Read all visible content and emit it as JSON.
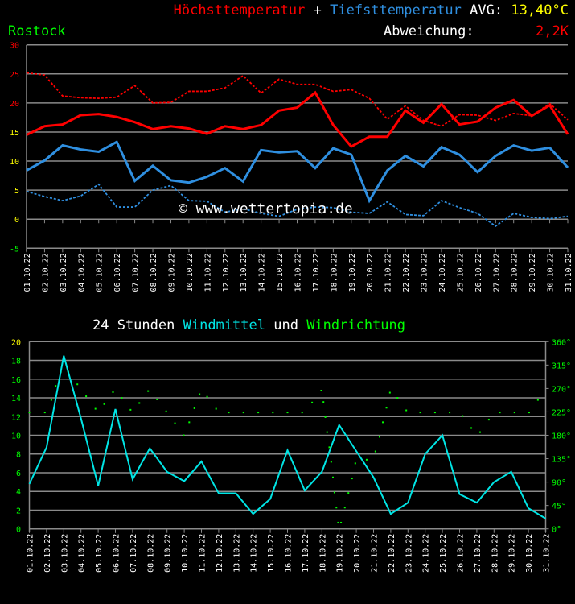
{
  "header": {
    "title_high": "Höchsttemperatur",
    "plus": "+",
    "title_low": "Tiefsttemperatur",
    "avg_label": "AVG:",
    "avg_value": "13,40°C",
    "station": "Rostock",
    "deviation_label": "Abweichung:",
    "deviation_value": "2,2K"
  },
  "watermark": "© www.wettertopia.de",
  "colors": {
    "high": "#ff0000",
    "low": "#2f8fe0",
    "wind": "#00e5e5",
    "direction": "#00ff00",
    "avg": "#ffff00",
    "grid": "#8a8a8a"
  },
  "dates": [
    "01.10.22",
    "02.10.22",
    "03.10.22",
    "04.10.22",
    "05.10.22",
    "06.10.22",
    "07.10.22",
    "08.10.22",
    "09.10.22",
    "10.10.22",
    "11.10.22",
    "12.10.22",
    "13.10.22",
    "14.10.22",
    "15.10.22",
    "16.10.22",
    "17.10.22",
    "18.10.22",
    "19.10.22",
    "20.10.22",
    "21.10.22",
    "22.10.22",
    "23.10.22",
    "24.10.22",
    "25.10.22",
    "26.10.22",
    "27.10.22",
    "28.10.22",
    "29.10.22",
    "30.10.22",
    "31.10.22"
  ],
  "chart_data": [
    {
      "type": "line",
      "ylim": [
        -5,
        30
      ],
      "yticks": [
        30,
        25,
        20,
        15,
        10,
        5,
        0,
        -5
      ],
      "grid": true,
      "series": [
        {
          "name": "Höchsttemperatur",
          "style": "solid",
          "values": [
            14.5,
            16.0,
            16.3,
            17.9,
            18.1,
            17.6,
            16.7,
            15.5,
            16.0,
            15.6,
            14.7,
            16.0,
            15.5,
            16.2,
            18.7,
            19.2,
            21.8,
            16.2,
            12.5,
            14.2,
            14.2,
            18.7,
            16.6,
            19.8,
            16.3,
            16.8,
            19.2,
            20.5,
            17.8,
            19.6,
            14.6
          ]
        },
        {
          "style": "dotted",
          "color": "#ff0000",
          "values": [
            25.2,
            24.8,
            21.2,
            20.9,
            20.8,
            21.0,
            23.0,
            20.0,
            20.1,
            22.0,
            22.0,
            22.6,
            24.7,
            21.7,
            24.1,
            23.2,
            23.2,
            22.0,
            22.3,
            20.8,
            17.2,
            19.5,
            17.0,
            16.0,
            18.0,
            17.9,
            17.0,
            18.2,
            17.8,
            19.9,
            17.1
          ]
        },
        {
          "name": "Tiefsttemperatur",
          "style": "solid",
          "values": [
            8.4,
            10.1,
            12.7,
            12.0,
            11.6,
            13.3,
            6.6,
            9.2,
            6.7,
            6.3,
            7.3,
            8.8,
            6.5,
            11.9,
            11.5,
            11.7,
            8.8,
            12.2,
            11.1,
            3.2,
            8.4,
            10.9,
            9.1,
            12.4,
            11.1,
            8.1,
            10.9,
            12.7,
            11.8,
            12.3,
            8.9
          ]
        },
        {
          "style": "dotted",
          "color": "#2f8fe0",
          "values": [
            4.8,
            3.9,
            3.2,
            4.0,
            6.0,
            2.1,
            2.1,
            5.0,
            5.8,
            3.2,
            3.1,
            1.2,
            1.8,
            1.0,
            0.5,
            1.7,
            2.1,
            2.0,
            1.2,
            1.0,
            3.0,
            0.8,
            0.6,
            3.2,
            2.0,
            1.0,
            -1.2,
            1.0,
            0.3,
            0.1,
            0.5
          ]
        }
      ]
    },
    {
      "type": "line",
      "title_a": "24 Stunden",
      "title_b": "Windmittel",
      "title_c": "und",
      "title_d": "Windrichtung",
      "ylim": [
        0,
        20
      ],
      "yticks": [
        20,
        18,
        16,
        14,
        12,
        10,
        8,
        6,
        4,
        2,
        0
      ],
      "y2lim": [
        0,
        360
      ],
      "y2ticks": [
        "360°",
        "315°",
        "270°",
        "225°",
        "180°",
        "135°",
        "90°",
        "45°",
        "0°"
      ],
      "grid": true,
      "wind": [
        4.8,
        8.7,
        18.5,
        11.8,
        4.6,
        12.8,
        5.3,
        8.6,
        6.1,
        5.1,
        7.2,
        3.8,
        3.8,
        1.6,
        3.2,
        8.4,
        4.1,
        6.1,
        11.1,
        8.3,
        5.5,
        1.6,
        2.8,
        8.0,
        10.0,
        3.7,
        2.8,
        5.0,
        6.1,
        2.2,
        1.1
      ],
      "direction": [
        [
          1.0,
          224
        ],
        [
          1.9,
          224
        ],
        [
          2.28,
          248
        ],
        [
          2.53,
          275
        ],
        [
          2.83,
          302
        ],
        [
          3.26,
          302
        ],
        [
          3.79,
          278
        ],
        [
          4.3,
          255
        ],
        [
          4.84,
          231
        ],
        [
          5.35,
          240
        ],
        [
          5.86,
          263
        ],
        [
          6.37,
          252
        ],
        [
          6.88,
          229
        ],
        [
          7.39,
          242
        ],
        [
          7.9,
          265
        ],
        [
          8.42,
          249
        ],
        [
          8.95,
          226
        ],
        [
          9.46,
          203
        ],
        [
          9.97,
          180
        ],
        [
          10.29,
          205
        ],
        [
          10.59,
          232
        ],
        [
          10.89,
          259
        ],
        [
          11.33,
          254
        ],
        [
          11.85,
          231
        ],
        [
          12.59,
          224
        ],
        [
          13.44,
          224
        ],
        [
          14.3,
          224
        ],
        [
          15.15,
          224
        ],
        [
          16.0,
          224
        ],
        [
          16.85,
          224
        ],
        [
          17.43,
          243
        ],
        [
          17.96,
          266
        ],
        [
          18.09,
          244
        ],
        [
          18.2,
          215
        ],
        [
          18.3,
          186
        ],
        [
          18.43,
          157
        ],
        [
          18.54,
          129
        ],
        [
          18.64,
          99
        ],
        [
          18.73,
          70
        ],
        [
          18.84,
          41
        ],
        [
          18.94,
          12
        ],
        [
          19.11,
          12
        ],
        [
          19.33,
          41
        ],
        [
          19.54,
          69
        ],
        [
          19.75,
          97
        ],
        [
          19.94,
          126
        ],
        [
          20.6,
          133
        ],
        [
          21.11,
          149
        ],
        [
          21.35,
          177
        ],
        [
          21.54,
          205
        ],
        [
          21.75,
          233
        ],
        [
          21.95,
          262
        ],
        [
          22.39,
          252
        ],
        [
          22.9,
          228
        ],
        [
          23.71,
          224
        ],
        [
          24.57,
          224
        ],
        [
          25.42,
          224
        ],
        [
          26.17,
          217
        ],
        [
          26.68,
          194
        ],
        [
          27.19,
          186
        ],
        [
          27.7,
          210
        ],
        [
          28.34,
          224
        ],
        [
          29.19,
          224
        ],
        [
          30.04,
          224
        ],
        [
          30.55,
          248
        ]
      ]
    }
  ]
}
